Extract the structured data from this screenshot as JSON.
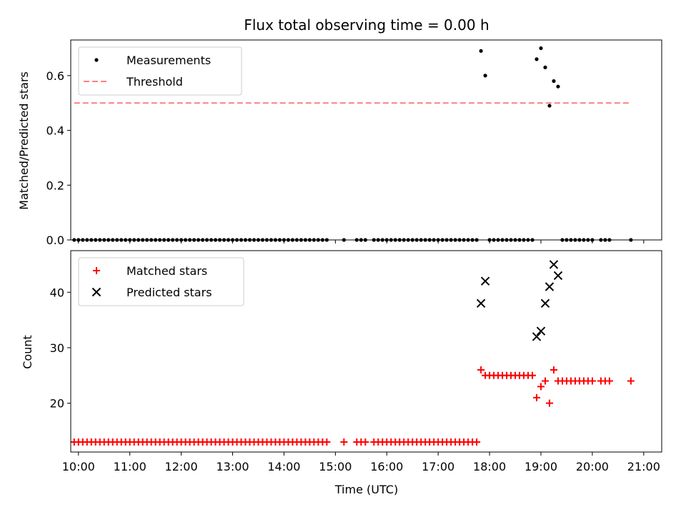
{
  "chart_data": [
    {
      "type": "scatter",
      "title": "Flux total observing time = 0.00 h",
      "ylabel": "Matched/Predicted stars",
      "xlabel": "",
      "ylim": [
        0,
        0.73
      ],
      "yticks": [
        0.0,
        0.2,
        0.4,
        0.6
      ],
      "ytick_labels": [
        "0.0",
        "0.2",
        "0.4",
        "0.6"
      ],
      "xlim": [
        "09:51",
        "21:21"
      ],
      "xticks": [
        "10:00",
        "11:00",
        "12:00",
        "13:00",
        "14:00",
        "15:00",
        "16:00",
        "17:00",
        "18:00",
        "19:00",
        "20:00",
        "21:00"
      ],
      "legend_position": "top-left",
      "series": [
        {
          "name": "Measurements",
          "color": "#000000",
          "marker": "dot",
          "points": [
            [
              "09:55",
              0.0
            ],
            [
              "10:00",
              0.0
            ],
            [
              "10:05",
              0.0
            ],
            [
              "10:10",
              0.0
            ],
            [
              "10:15",
              0.0
            ],
            [
              "10:20",
              0.0
            ],
            [
              "10:25",
              0.0
            ],
            [
              "10:30",
              0.0
            ],
            [
              "10:35",
              0.0
            ],
            [
              "10:40",
              0.0
            ],
            [
              "10:45",
              0.0
            ],
            [
              "10:50",
              0.0
            ],
            [
              "10:55",
              0.0
            ],
            [
              "11:00",
              0.0
            ],
            [
              "11:05",
              0.0
            ],
            [
              "11:10",
              0.0
            ],
            [
              "11:15",
              0.0
            ],
            [
              "11:20",
              0.0
            ],
            [
              "11:25",
              0.0
            ],
            [
              "11:30",
              0.0
            ],
            [
              "11:35",
              0.0
            ],
            [
              "11:40",
              0.0
            ],
            [
              "11:45",
              0.0
            ],
            [
              "11:50",
              0.0
            ],
            [
              "11:55",
              0.0
            ],
            [
              "12:00",
              0.0
            ],
            [
              "12:05",
              0.0
            ],
            [
              "12:10",
              0.0
            ],
            [
              "12:15",
              0.0
            ],
            [
              "12:20",
              0.0
            ],
            [
              "12:25",
              0.0
            ],
            [
              "12:30",
              0.0
            ],
            [
              "12:35",
              0.0
            ],
            [
              "12:40",
              0.0
            ],
            [
              "12:45",
              0.0
            ],
            [
              "12:50",
              0.0
            ],
            [
              "12:55",
              0.0
            ],
            [
              "13:00",
              0.0
            ],
            [
              "13:05",
              0.0
            ],
            [
              "13:10",
              0.0
            ],
            [
              "13:15",
              0.0
            ],
            [
              "13:20",
              0.0
            ],
            [
              "13:25",
              0.0
            ],
            [
              "13:30",
              0.0
            ],
            [
              "13:35",
              0.0
            ],
            [
              "13:40",
              0.0
            ],
            [
              "13:45",
              0.0
            ],
            [
              "13:50",
              0.0
            ],
            [
              "13:55",
              0.0
            ],
            [
              "14:00",
              0.0
            ],
            [
              "14:05",
              0.0
            ],
            [
              "14:10",
              0.0
            ],
            [
              "14:15",
              0.0
            ],
            [
              "14:20",
              0.0
            ],
            [
              "14:25",
              0.0
            ],
            [
              "14:30",
              0.0
            ],
            [
              "14:35",
              0.0
            ],
            [
              "14:40",
              0.0
            ],
            [
              "14:45",
              0.0
            ],
            [
              "14:50",
              0.0
            ],
            [
              "15:10",
              0.0
            ],
            [
              "15:25",
              0.0
            ],
            [
              "15:30",
              0.0
            ],
            [
              "15:35",
              0.0
            ],
            [
              "15:45",
              0.0
            ],
            [
              "15:50",
              0.0
            ],
            [
              "15:55",
              0.0
            ],
            [
              "16:00",
              0.0
            ],
            [
              "16:05",
              0.0
            ],
            [
              "16:10",
              0.0
            ],
            [
              "16:15",
              0.0
            ],
            [
              "16:20",
              0.0
            ],
            [
              "16:25",
              0.0
            ],
            [
              "16:30",
              0.0
            ],
            [
              "16:35",
              0.0
            ],
            [
              "16:40",
              0.0
            ],
            [
              "16:45",
              0.0
            ],
            [
              "16:50",
              0.0
            ],
            [
              "16:55",
              0.0
            ],
            [
              "17:00",
              0.0
            ],
            [
              "17:05",
              0.0
            ],
            [
              "17:10",
              0.0
            ],
            [
              "17:15",
              0.0
            ],
            [
              "17:20",
              0.0
            ],
            [
              "17:25",
              0.0
            ],
            [
              "17:30",
              0.0
            ],
            [
              "17:35",
              0.0
            ],
            [
              "17:40",
              0.0
            ],
            [
              "17:45",
              0.0
            ],
            [
              "17:50",
              0.69
            ],
            [
              "17:55",
              0.6
            ],
            [
              "18:00",
              0.0
            ],
            [
              "18:05",
              0.0
            ],
            [
              "18:10",
              0.0
            ],
            [
              "18:15",
              0.0
            ],
            [
              "18:20",
              0.0
            ],
            [
              "18:25",
              0.0
            ],
            [
              "18:30",
              0.0
            ],
            [
              "18:35",
              0.0
            ],
            [
              "18:40",
              0.0
            ],
            [
              "18:45",
              0.0
            ],
            [
              "18:50",
              0.0
            ],
            [
              "18:55",
              0.66
            ],
            [
              "19:00",
              0.7
            ],
            [
              "19:05",
              0.63
            ],
            [
              "19:10",
              0.49
            ],
            [
              "19:15",
              0.58
            ],
            [
              "19:20",
              0.56
            ],
            [
              "19:25",
              0.0
            ],
            [
              "19:30",
              0.0
            ],
            [
              "19:35",
              0.0
            ],
            [
              "19:40",
              0.0
            ],
            [
              "19:45",
              0.0
            ],
            [
              "19:50",
              0.0
            ],
            [
              "19:55",
              0.0
            ],
            [
              "20:00",
              0.0
            ],
            [
              "20:10",
              0.0
            ],
            [
              "20:15",
              0.0
            ],
            [
              "20:20",
              0.0
            ],
            [
              "20:45",
              0.0
            ]
          ]
        },
        {
          "name": "Threshold",
          "color": "#ff7f7f",
          "marker": "dashed-line",
          "points": [
            [
              "09:55",
              0.5
            ],
            [
              "20:45",
              0.5
            ]
          ]
        }
      ]
    },
    {
      "type": "scatter",
      "title": "",
      "ylabel": "Count",
      "xlabel": "Time (UTC)",
      "ylim": [
        11.2,
        47.5
      ],
      "yticks": [
        20,
        30,
        40
      ],
      "ytick_labels": [
        "20",
        "30",
        "40"
      ],
      "xlim": [
        "09:51",
        "21:21"
      ],
      "xticks": [
        "10:00",
        "11:00",
        "12:00",
        "13:00",
        "14:00",
        "15:00",
        "16:00",
        "17:00",
        "18:00",
        "19:00",
        "20:00",
        "21:00"
      ],
      "xtick_labels": [
        "10:00",
        "11:00",
        "12:00",
        "13:00",
        "14:00",
        "15:00",
        "16:00",
        "17:00",
        "18:00",
        "19:00",
        "20:00",
        "21:00"
      ],
      "legend_position": "top-left",
      "series": [
        {
          "name": "Matched stars",
          "color": "#ff0000",
          "marker": "plus",
          "points": [
            [
              "09:55",
              13
            ],
            [
              "10:00",
              13
            ],
            [
              "10:05",
              13
            ],
            [
              "10:10",
              13
            ],
            [
              "10:15",
              13
            ],
            [
              "10:20",
              13
            ],
            [
              "10:25",
              13
            ],
            [
              "10:30",
              13
            ],
            [
              "10:35",
              13
            ],
            [
              "10:40",
              13
            ],
            [
              "10:45",
              13
            ],
            [
              "10:50",
              13
            ],
            [
              "10:55",
              13
            ],
            [
              "11:00",
              13
            ],
            [
              "11:05",
              13
            ],
            [
              "11:10",
              13
            ],
            [
              "11:15",
              13
            ],
            [
              "11:20",
              13
            ],
            [
              "11:25",
              13
            ],
            [
              "11:30",
              13
            ],
            [
              "11:35",
              13
            ],
            [
              "11:40",
              13
            ],
            [
              "11:45",
              13
            ],
            [
              "11:50",
              13
            ],
            [
              "11:55",
              13
            ],
            [
              "12:00",
              13
            ],
            [
              "12:05",
              13
            ],
            [
              "12:10",
              13
            ],
            [
              "12:15",
              13
            ],
            [
              "12:20",
              13
            ],
            [
              "12:25",
              13
            ],
            [
              "12:30",
              13
            ],
            [
              "12:35",
              13
            ],
            [
              "12:40",
              13
            ],
            [
              "12:45",
              13
            ],
            [
              "12:50",
              13
            ],
            [
              "12:55",
              13
            ],
            [
              "13:00",
              13
            ],
            [
              "13:05",
              13
            ],
            [
              "13:10",
              13
            ],
            [
              "13:15",
              13
            ],
            [
              "13:20",
              13
            ],
            [
              "13:25",
              13
            ],
            [
              "13:30",
              13
            ],
            [
              "13:35",
              13
            ],
            [
              "13:40",
              13
            ],
            [
              "13:45",
              13
            ],
            [
              "13:50",
              13
            ],
            [
              "13:55",
              13
            ],
            [
              "14:00",
              13
            ],
            [
              "14:05",
              13
            ],
            [
              "14:10",
              13
            ],
            [
              "14:15",
              13
            ],
            [
              "14:20",
              13
            ],
            [
              "14:25",
              13
            ],
            [
              "14:30",
              13
            ],
            [
              "14:35",
              13
            ],
            [
              "14:40",
              13
            ],
            [
              "14:45",
              13
            ],
            [
              "14:50",
              13
            ],
            [
              "15:10",
              13
            ],
            [
              "15:25",
              13
            ],
            [
              "15:30",
              13
            ],
            [
              "15:35",
              13
            ],
            [
              "15:45",
              13
            ],
            [
              "15:50",
              13
            ],
            [
              "15:55",
              13
            ],
            [
              "16:00",
              13
            ],
            [
              "16:05",
              13
            ],
            [
              "16:10",
              13
            ],
            [
              "16:15",
              13
            ],
            [
              "16:20",
              13
            ],
            [
              "16:25",
              13
            ],
            [
              "16:30",
              13
            ],
            [
              "16:35",
              13
            ],
            [
              "16:40",
              13
            ],
            [
              "16:45",
              13
            ],
            [
              "16:50",
              13
            ],
            [
              "16:55",
              13
            ],
            [
              "17:00",
              13
            ],
            [
              "17:05",
              13
            ],
            [
              "17:10",
              13
            ],
            [
              "17:15",
              13
            ],
            [
              "17:20",
              13
            ],
            [
              "17:25",
              13
            ],
            [
              "17:30",
              13
            ],
            [
              "17:35",
              13
            ],
            [
              "17:40",
              13
            ],
            [
              "17:45",
              13
            ],
            [
              "17:50",
              26
            ],
            [
              "17:55",
              25
            ],
            [
              "18:00",
              25
            ],
            [
              "18:05",
              25
            ],
            [
              "18:10",
              25
            ],
            [
              "18:15",
              25
            ],
            [
              "18:20",
              25
            ],
            [
              "18:25",
              25
            ],
            [
              "18:30",
              25
            ],
            [
              "18:35",
              25
            ],
            [
              "18:40",
              25
            ],
            [
              "18:45",
              25
            ],
            [
              "18:50",
              25
            ],
            [
              "18:55",
              21
            ],
            [
              "19:00",
              23
            ],
            [
              "19:05",
              24
            ],
            [
              "19:10",
              20
            ],
            [
              "19:15",
              26
            ],
            [
              "19:20",
              24
            ],
            [
              "19:25",
              24
            ],
            [
              "19:30",
              24
            ],
            [
              "19:35",
              24
            ],
            [
              "19:40",
              24
            ],
            [
              "19:45",
              24
            ],
            [
              "19:50",
              24
            ],
            [
              "19:55",
              24
            ],
            [
              "20:00",
              24
            ],
            [
              "20:10",
              24
            ],
            [
              "20:15",
              24
            ],
            [
              "20:20",
              24
            ],
            [
              "20:45",
              24
            ]
          ]
        },
        {
          "name": "Predicted stars",
          "color": "#000000",
          "marker": "x",
          "points": [
            [
              "17:50",
              38
            ],
            [
              "17:55",
              42
            ],
            [
              "18:55",
              32
            ],
            [
              "19:00",
              33
            ],
            [
              "19:05",
              38
            ],
            [
              "19:10",
              41
            ],
            [
              "19:15",
              45
            ],
            [
              "19:20",
              43
            ]
          ]
        }
      ]
    }
  ]
}
